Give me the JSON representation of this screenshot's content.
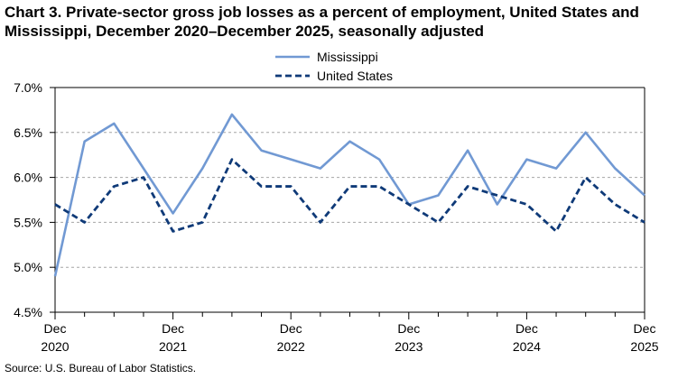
{
  "title": "Chart 3. Private-sector gross job losses as a percent of employment, United States and Mississippi, December 2020–December 2025, seasonally adjusted",
  "source": "Source: U.S. Bureau of Labor Statistics.",
  "colors": {
    "mississippi": "#7199D3",
    "united_states": "#0F3A78",
    "grid": "#A6A6A6",
    "axis": "#000000"
  },
  "chart_data": {
    "type": "line",
    "title": "Chart 3. Private-sector gross job losses as a percent of employment, United States and Mississippi, December 2020–December 2025, seasonally adjusted",
    "x": [
      "Dec 2020",
      "Mar 2021",
      "Jun 2021",
      "Sep 2021",
      "Dec 2021",
      "Mar 2022",
      "Jun 2022",
      "Sep 2022",
      "Dec 2022",
      "Mar 2023",
      "Jun 2023",
      "Sep 2023",
      "Dec 2023",
      "Mar 2024",
      "Jun 2024",
      "Sep 2024",
      "Dec 2024",
      "Mar 2025",
      "Jun 2025",
      "Sep 2025",
      "Dec 2025"
    ],
    "x_tick_labels": [
      {
        "index": 0,
        "month": "Dec",
        "year": "2020"
      },
      {
        "index": 4,
        "month": "Dec",
        "year": "2021"
      },
      {
        "index": 8,
        "month": "Dec",
        "year": "2022"
      },
      {
        "index": 12,
        "month": "Dec",
        "year": "2023"
      },
      {
        "index": 16,
        "month": "Dec",
        "year": "2024"
      },
      {
        "index": 20,
        "month": "Dec",
        "year": "2025"
      }
    ],
    "series": [
      {
        "name": "Mississippi",
        "style": "solid",
        "values": [
          4.9,
          6.4,
          6.6,
          6.1,
          5.6,
          6.1,
          6.7,
          6.3,
          6.2,
          6.1,
          6.4,
          6.2,
          5.7,
          5.8,
          6.3,
          5.7,
          6.2,
          6.1,
          6.5,
          6.1,
          5.8
        ]
      },
      {
        "name": "United States",
        "style": "dashed",
        "values": [
          5.7,
          5.5,
          5.9,
          6.0,
          5.4,
          5.5,
          6.2,
          5.9,
          5.9,
          5.5,
          5.9,
          5.9,
          5.7,
          5.5,
          5.9,
          5.8,
          5.7,
          5.4,
          6.0,
          5.7,
          5.5
        ]
      }
    ],
    "yticks": [
      "4.5%",
      "5.0%",
      "5.5%",
      "6.0%",
      "6.5%",
      "7.0%"
    ],
    "ylim": [
      4.5,
      7.0
    ],
    "grid": "horizontal dashed",
    "legend_position": "top-center"
  }
}
